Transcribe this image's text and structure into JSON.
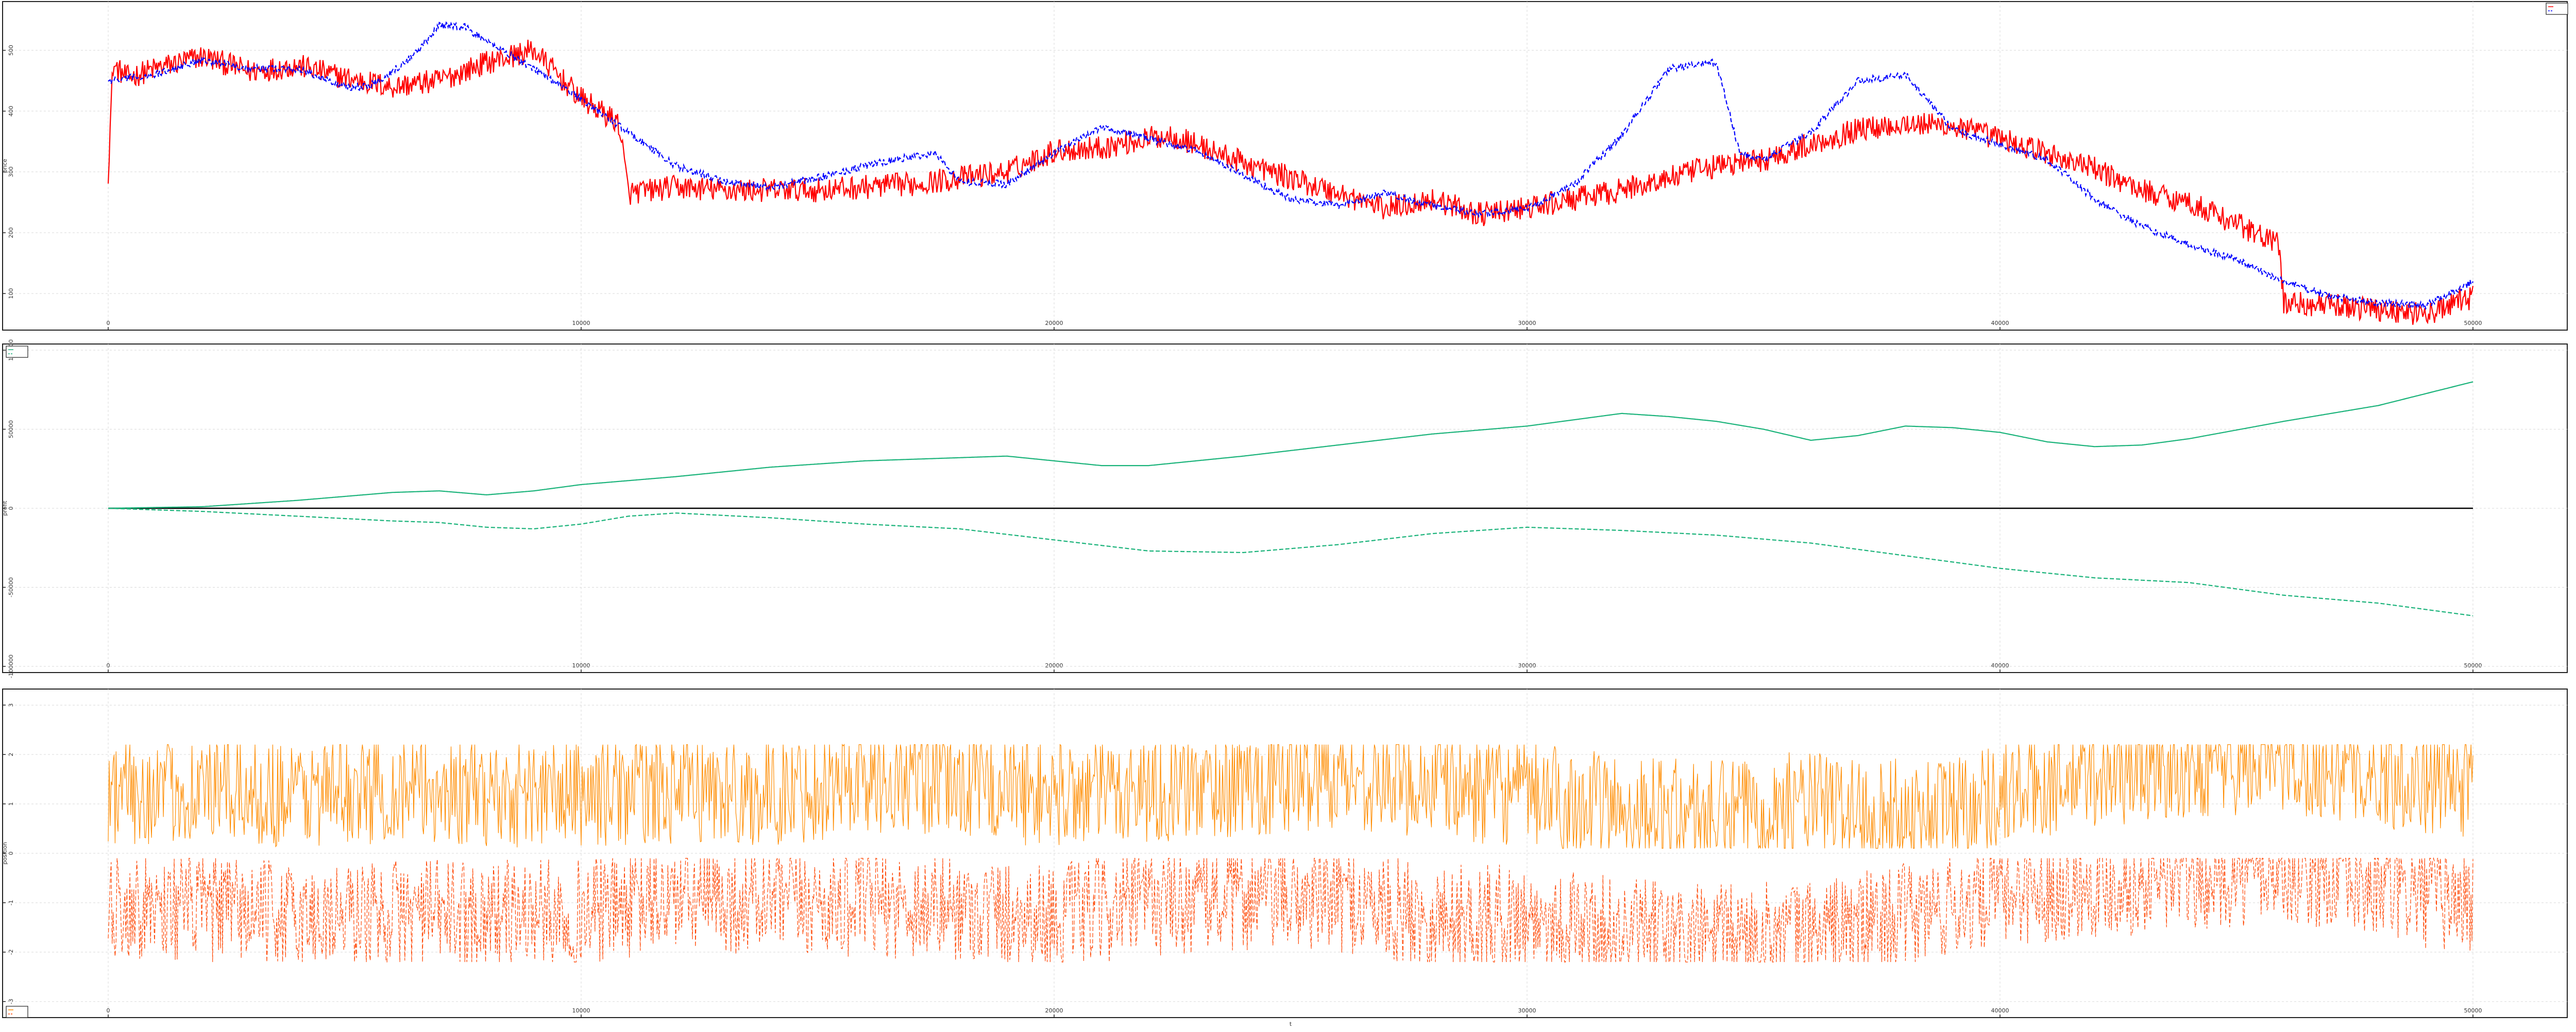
{
  "chart_data": [
    {
      "type": "line",
      "id": "price",
      "xlim": [
        0,
        50000
      ],
      "ylim": [
        50,
        570
      ],
      "x_ticks": [
        0,
        10000,
        20000,
        30000,
        40000,
        50000
      ],
      "y_ticks": [
        100,
        200,
        300,
        400,
        500
      ],
      "ylabel": "price",
      "grid": true,
      "legend": "top-right",
      "legend_entries": [
        "",
        ""
      ],
      "series": [
        {
          "color": "#ff0000",
          "style": "solid",
          "noise": 20,
          "points": [
            [
              0,
              300
            ],
            [
              100,
              475
            ],
            [
              400,
              455
            ],
            [
              1000,
              470
            ],
            [
              2000,
              490
            ],
            [
              3000,
              465
            ],
            [
              4000,
              475
            ],
            [
              5000,
              455
            ],
            [
              6000,
              440
            ],
            [
              7000,
              450
            ],
            [
              8000,
              480
            ],
            [
              9000,
              500
            ],
            [
              10000,
              420
            ],
            [
              10800,
              380
            ],
            [
              11000,
              265
            ],
            [
              12000,
              275
            ],
            [
              13000,
              270
            ],
            [
              15000,
              270
            ],
            [
              17000,
              280
            ],
            [
              18000,
              290
            ],
            [
              19000,
              300
            ],
            [
              20000,
              335
            ],
            [
              21000,
              340
            ],
            [
              22000,
              355
            ],
            [
              22500,
              360
            ],
            [
              23000,
              345
            ],
            [
              24000,
              315
            ],
            [
              25000,
              290
            ],
            [
              26000,
              265
            ],
            [
              27000,
              240
            ],
            [
              28000,
              255
            ],
            [
              29000,
              230
            ],
            [
              30000,
              240
            ],
            [
              31000,
              255
            ],
            [
              32000,
              270
            ],
            [
              33000,
              290
            ],
            [
              34000,
              310
            ],
            [
              35000,
              320
            ],
            [
              36000,
              345
            ],
            [
              37000,
              370
            ],
            [
              38000,
              380
            ],
            [
              39000,
              375
            ],
            [
              40000,
              355
            ],
            [
              41000,
              330
            ],
            [
              42000,
              305
            ],
            [
              43000,
              270
            ],
            [
              44000,
              250
            ],
            [
              45000,
              215
            ],
            [
              45900,
              180
            ],
            [
              46000,
              85
            ],
            [
              47000,
              80
            ],
            [
              48000,
              75
            ],
            [
              49000,
              65
            ],
            [
              50000,
              95
            ]
          ]
        },
        {
          "color": "#0000ff",
          "style": "dashed",
          "noise": 6,
          "points": [
            [
              0,
              450
            ],
            [
              1000,
              460
            ],
            [
              2000,
              485
            ],
            [
              3000,
              470
            ],
            [
              4000,
              470
            ],
            [
              5000,
              440
            ],
            [
              5500,
              440
            ],
            [
              6000,
              465
            ],
            [
              6500,
              495
            ],
            [
              7000,
              540
            ],
            [
              7500,
              540
            ],
            [
              8000,
              515
            ],
            [
              9000,
              470
            ],
            [
              10000,
              420
            ],
            [
              11000,
              365
            ],
            [
              12000,
              310
            ],
            [
              13000,
              285
            ],
            [
              14000,
              275
            ],
            [
              15000,
              290
            ],
            [
              16000,
              310
            ],
            [
              17000,
              325
            ],
            [
              17500,
              330
            ],
            [
              18000,
              285
            ],
            [
              19000,
              280
            ],
            [
              20000,
              330
            ],
            [
              21000,
              375
            ],
            [
              22000,
              355
            ],
            [
              23000,
              335
            ],
            [
              24000,
              295
            ],
            [
              25000,
              255
            ],
            [
              26000,
              245
            ],
            [
              27000,
              265
            ],
            [
              28000,
              245
            ],
            [
              29000,
              230
            ],
            [
              30000,
              240
            ],
            [
              31000,
              280
            ],
            [
              32000,
              360
            ],
            [
              33000,
              470
            ],
            [
              34000,
              480
            ],
            [
              34500,
              330
            ],
            [
              35000,
              320
            ],
            [
              36000,
              365
            ],
            [
              37000,
              450
            ],
            [
              38000,
              460
            ],
            [
              39000,
              370
            ],
            [
              40000,
              345
            ],
            [
              41000,
              320
            ],
            [
              42000,
              255
            ],
            [
              43000,
              210
            ],
            [
              44000,
              180
            ],
            [
              45000,
              155
            ],
            [
              46000,
              120
            ],
            [
              47000,
              95
            ],
            [
              48000,
              85
            ],
            [
              49000,
              80
            ],
            [
              50000,
              120
            ]
          ]
        }
      ]
    },
    {
      "type": "line",
      "id": "cumulative",
      "xlim": [
        0,
        50000
      ],
      "ylim": [
        -100000,
        100000
      ],
      "x_ticks": [
        0,
        10000,
        20000,
        30000,
        40000,
        50000
      ],
      "y_ticks": [
        -100000,
        -50000,
        0,
        50000,
        100000
      ],
      "y_tick_labels": [
        "-100000",
        "-50000",
        "0",
        "50000",
        "100000"
      ],
      "ylabel": "profit",
      "grid": true,
      "legend": "top-left",
      "legend_entries": [
        "",
        ""
      ],
      "zero_line": true,
      "series": [
        {
          "color": "#1ab37a",
          "style": "solid",
          "points": [
            [
              0,
              0
            ],
            [
              2000,
              1000
            ],
            [
              4000,
              5000
            ],
            [
              6000,
              10000
            ],
            [
              7000,
              11000
            ],
            [
              8000,
              8500
            ],
            [
              9000,
              11000
            ],
            [
              10000,
              15000
            ],
            [
              12000,
              20000
            ],
            [
              14000,
              26000
            ],
            [
              16000,
              30000
            ],
            [
              17000,
              31000
            ],
            [
              18000,
              32000
            ],
            [
              19000,
              33000
            ],
            [
              20000,
              30000
            ],
            [
              21000,
              27000
            ],
            [
              22000,
              27000
            ],
            [
              24000,
              33000
            ],
            [
              26000,
              40000
            ],
            [
              28000,
              47000
            ],
            [
              30000,
              52000
            ],
            [
              32000,
              60000
            ],
            [
              33000,
              58000
            ],
            [
              34000,
              55000
            ],
            [
              35000,
              50000
            ],
            [
              36000,
              43000
            ],
            [
              37000,
              46000
            ],
            [
              38000,
              52000
            ],
            [
              39000,
              51000
            ],
            [
              40000,
              48000
            ],
            [
              41000,
              42000
            ],
            [
              42000,
              39000
            ],
            [
              43000,
              40000
            ],
            [
              44000,
              44000
            ],
            [
              46000,
              55000
            ],
            [
              48000,
              65000
            ],
            [
              50000,
              80000
            ],
            [
              52000,
              88000
            ],
            [
              54000,
              96000
            ],
            [
              50000,
              97000
            ]
          ]
        },
        {
          "color": "#1ab37a",
          "style": "dashed",
          "points": [
            [
              0,
              0
            ],
            [
              2000,
              -2000
            ],
            [
              4000,
              -5000
            ],
            [
              6000,
              -8000
            ],
            [
              7000,
              -9000
            ],
            [
              8000,
              -12000
            ],
            [
              9000,
              -13000
            ],
            [
              10000,
              -10000
            ],
            [
              11000,
              -5000
            ],
            [
              12000,
              -3000
            ],
            [
              14000,
              -6000
            ],
            [
              16000,
              -10000
            ],
            [
              18000,
              -13000
            ],
            [
              20000,
              -20000
            ],
            [
              22000,
              -27000
            ],
            [
              24000,
              -28000
            ],
            [
              26000,
              -23000
            ],
            [
              28000,
              -16000
            ],
            [
              30000,
              -12000
            ],
            [
              32000,
              -14000
            ],
            [
              34000,
              -17000
            ],
            [
              36000,
              -22000
            ],
            [
              38000,
              -30000
            ],
            [
              40000,
              -38000
            ],
            [
              42000,
              -44000
            ],
            [
              44000,
              -47000
            ],
            [
              46000,
              -55000
            ],
            [
              48000,
              -60000
            ],
            [
              50000,
              -68000
            ]
          ]
        }
      ]
    },
    {
      "type": "line",
      "id": "position",
      "xlim": [
        0,
        50000
      ],
      "ylim": [
        -3.2,
        3.2
      ],
      "x_ticks": [
        0,
        10000,
        20000,
        30000,
        40000,
        50000
      ],
      "y_ticks": [
        -3,
        -2,
        -1,
        0,
        1,
        2,
        3
      ],
      "ylabel": "position",
      "xlabel": "t",
      "grid": true,
      "legend": "bottom-left",
      "legend_entries": [
        "",
        ""
      ],
      "series": [
        {
          "color": "#ff8c00",
          "style": "solid",
          "min": 0.1,
          "max": 2.2,
          "points": [
            [
              0,
              1.2
            ],
            [
              2000,
              1.3
            ],
            [
              4000,
              1.2
            ],
            [
              6000,
              1.3
            ],
            [
              8000,
              1.2
            ],
            [
              10000,
              1.2
            ],
            [
              12000,
              1.3
            ],
            [
              14000,
              1.2
            ],
            [
              16000,
              1.5
            ],
            [
              18000,
              1.4
            ],
            [
              20000,
              1.2
            ],
            [
              22000,
              1.3
            ],
            [
              24000,
              1.4
            ],
            [
              26000,
              1.6
            ],
            [
              28000,
              1.4
            ],
            [
              30000,
              1.2
            ],
            [
              32000,
              0.9
            ],
            [
              34000,
              0.8
            ],
            [
              36000,
              1.0
            ],
            [
              38000,
              0.8
            ],
            [
              40000,
              1.2
            ],
            [
              42000,
              1.6
            ],
            [
              44000,
              1.8
            ],
            [
              46000,
              1.9
            ],
            [
              48000,
              1.6
            ],
            [
              50000,
              1.4
            ]
          ]
        },
        {
          "color": "#ff4500",
          "style": "dashed",
          "min": -2.2,
          "max": -0.1,
          "points": [
            [
              0,
              -1.0
            ],
            [
              2000,
              -1.1
            ],
            [
              4000,
              -1.3
            ],
            [
              6000,
              -1.2
            ],
            [
              8000,
              -1.2
            ],
            [
              10000,
              -1.2
            ],
            [
              12000,
              -0.9
            ],
            [
              14000,
              -1.0
            ],
            [
              16000,
              -1.0
            ],
            [
              18000,
              -1.1
            ],
            [
              20000,
              -1.3
            ],
            [
              22000,
              -1.0
            ],
            [
              24000,
              -0.9
            ],
            [
              26000,
              -0.9
            ],
            [
              28000,
              -1.3
            ],
            [
              30000,
              -1.3
            ],
            [
              32000,
              -1.6
            ],
            [
              34000,
              -1.7
            ],
            [
              36000,
              -1.6
            ],
            [
              38000,
              -1.3
            ],
            [
              40000,
              -0.8
            ],
            [
              42000,
              -0.6
            ],
            [
              44000,
              -0.5
            ],
            [
              46000,
              -0.3
            ],
            [
              48000,
              -0.7
            ],
            [
              50000,
              -1.0
            ]
          ]
        }
      ]
    }
  ]
}
